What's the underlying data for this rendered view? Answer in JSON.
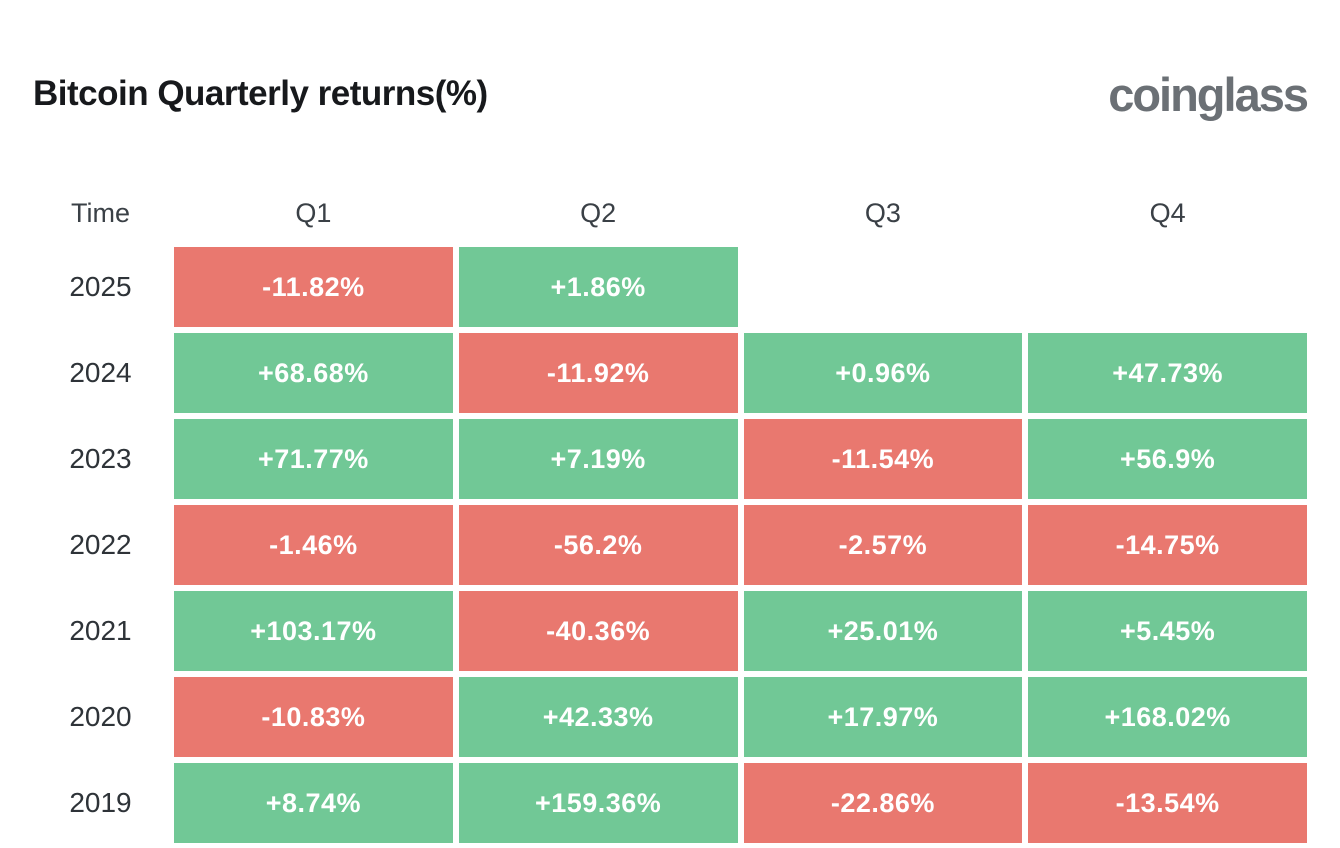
{
  "header": {
    "title": "Bitcoin Quarterly returns(%)",
    "logo": "coinglass"
  },
  "colors": {
    "positive": "#71C896",
    "negative": "#E9786F",
    "cell_text": "#FFFFFF",
    "title_text": "#17191C",
    "logo_text": "#6B7075",
    "label_text": "#2E3338"
  },
  "table": {
    "headers": [
      "Time",
      "Q1",
      "Q2",
      "Q3",
      "Q4"
    ],
    "rows": [
      {
        "year": "2025",
        "cells": [
          {
            "label": "-11.82%",
            "sign": "negative"
          },
          {
            "label": "+1.86%",
            "sign": "positive"
          },
          null,
          null
        ]
      },
      {
        "year": "2024",
        "cells": [
          {
            "label": "+68.68%",
            "sign": "positive"
          },
          {
            "label": "-11.92%",
            "sign": "negative"
          },
          {
            "label": "+0.96%",
            "sign": "positive"
          },
          {
            "label": "+47.73%",
            "sign": "positive"
          }
        ]
      },
      {
        "year": "2023",
        "cells": [
          {
            "label": "+71.77%",
            "sign": "positive"
          },
          {
            "label": "+7.19%",
            "sign": "positive"
          },
          {
            "label": "-11.54%",
            "sign": "negative"
          },
          {
            "label": "+56.9%",
            "sign": "positive"
          }
        ]
      },
      {
        "year": "2022",
        "cells": [
          {
            "label": "-1.46%",
            "sign": "negative"
          },
          {
            "label": "-56.2%",
            "sign": "negative"
          },
          {
            "label": "-2.57%",
            "sign": "negative"
          },
          {
            "label": "-14.75%",
            "sign": "negative"
          }
        ]
      },
      {
        "year": "2021",
        "cells": [
          {
            "label": "+103.17%",
            "sign": "positive"
          },
          {
            "label": "-40.36%",
            "sign": "negative"
          },
          {
            "label": "+25.01%",
            "sign": "positive"
          },
          {
            "label": "+5.45%",
            "sign": "positive"
          }
        ]
      },
      {
        "year": "2020",
        "cells": [
          {
            "label": "-10.83%",
            "sign": "negative"
          },
          {
            "label": "+42.33%",
            "sign": "positive"
          },
          {
            "label": "+17.97%",
            "sign": "positive"
          },
          {
            "label": "+168.02%",
            "sign": "positive"
          }
        ]
      },
      {
        "year": "2019",
        "cells": [
          {
            "label": "+8.74%",
            "sign": "positive"
          },
          {
            "label": "+159.36%",
            "sign": "positive"
          },
          {
            "label": "-22.86%",
            "sign": "negative"
          },
          {
            "label": "-13.54%",
            "sign": "negative"
          }
        ]
      }
    ]
  },
  "chart_data": {
    "type": "heatmap",
    "title": "Bitcoin Quarterly returns(%)",
    "source": "coinglass",
    "categories": [
      "Q1",
      "Q2",
      "Q3",
      "Q4"
    ],
    "row_labels": [
      "2025",
      "2024",
      "2023",
      "2022",
      "2021",
      "2020",
      "2019"
    ],
    "series": [
      {
        "name": "2025",
        "values": [
          -11.82,
          1.86,
          null,
          null
        ]
      },
      {
        "name": "2024",
        "values": [
          68.68,
          -11.92,
          0.96,
          47.73
        ]
      },
      {
        "name": "2023",
        "values": [
          71.77,
          7.19,
          -11.54,
          56.9
        ]
      },
      {
        "name": "2022",
        "values": [
          -1.46,
          -56.2,
          -2.57,
          -14.75
        ]
      },
      {
        "name": "2021",
        "values": [
          103.17,
          -40.36,
          25.01,
          5.45
        ]
      },
      {
        "name": "2020",
        "values": [
          -10.83,
          42.33,
          17.97,
          168.02
        ]
      },
      {
        "name": "2019",
        "values": [
          8.74,
          159.36,
          -22.86,
          -13.54
        ]
      }
    ],
    "legend": "none",
    "grid": "off",
    "color_coding": {
      "positive": "#71C896",
      "negative": "#E9786F"
    }
  }
}
